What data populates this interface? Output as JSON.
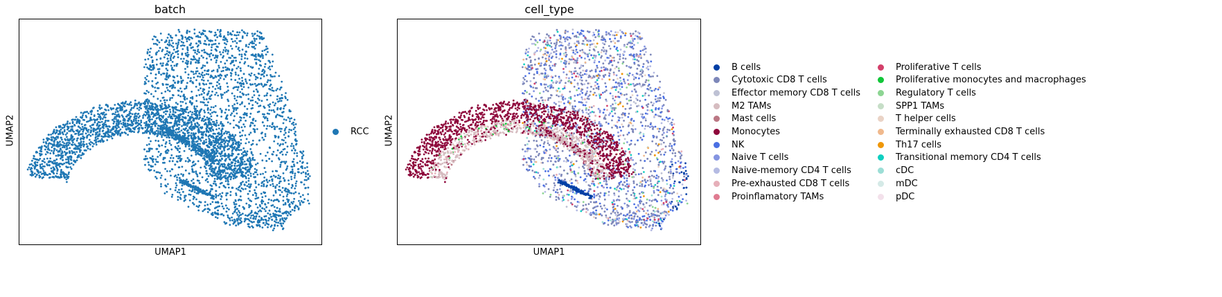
{
  "chart_data": [
    {
      "type": "scatter",
      "title": "batch",
      "xlabel": "UMAP1",
      "ylabel": "UMAP2",
      "grid": false,
      "legend": "right",
      "series": [
        {
          "name": "RCC",
          "color": "#1f77b4"
        }
      ]
    },
    {
      "type": "scatter",
      "title": "cell_type",
      "xlabel": "UMAP1",
      "ylabel": "UMAP2",
      "grid": false,
      "legend": "right",
      "series": [
        {
          "name": "B cells",
          "color": "#023fa5"
        },
        {
          "name": "Cytotoxic CD8 T cells",
          "color": "#7d87b9"
        },
        {
          "name": "Effector memory CD8 T cells",
          "color": "#bec1d4"
        },
        {
          "name": "M2 TAMs",
          "color": "#d6bcc0"
        },
        {
          "name": "Mast cells",
          "color": "#bb7784"
        },
        {
          "name": "Monocytes",
          "color": "#8e063b"
        },
        {
          "name": "NK",
          "color": "#4a6fe3"
        },
        {
          "name": "Naive T cells",
          "color": "#8595e1"
        },
        {
          "name": "Naive-memory CD4 T cells",
          "color": "#b5bbe3"
        },
        {
          "name": "Pre-exhausted CD8 T cells",
          "color": "#e6afb9"
        },
        {
          "name": "Proinflamatory TAMs",
          "color": "#e07b91"
        },
        {
          "name": "Proliferative T cells",
          "color": "#d33f6a"
        },
        {
          "name": "Proliferative monocytes and macrophages",
          "color": "#11c638"
        },
        {
          "name": "Regulatory T cells",
          "color": "#8dd593"
        },
        {
          "name": "SPP1 TAMs",
          "color": "#c6dec7"
        },
        {
          "name": "T helper cells",
          "color": "#ead3c6"
        },
        {
          "name": "Terminally exhausted CD8 T cells",
          "color": "#f0b98d"
        },
        {
          "name": "Th17 cells",
          "color": "#ef9708"
        },
        {
          "name": "Transitional memory CD4 T cells",
          "color": "#0fcfc0"
        },
        {
          "name": "cDC",
          "color": "#9cded6"
        },
        {
          "name": "mDC",
          "color": "#d5eae7"
        },
        {
          "name": "pDC",
          "color": "#f3e1eb"
        }
      ]
    }
  ]
}
